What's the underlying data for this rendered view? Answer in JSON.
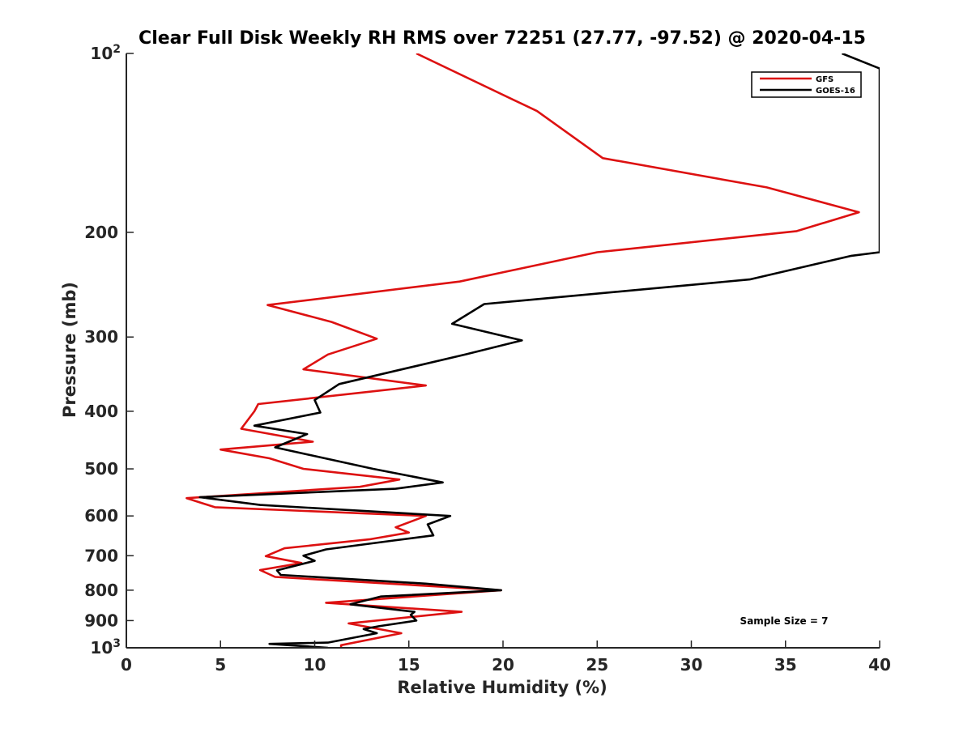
{
  "chart_data": {
    "type": "line",
    "title": "Clear Full Disk Weekly RH RMS over 72251 (27.77, -97.52) @ 2020-04-15",
    "xlabel": "Relative Humidity (%)",
    "ylabel": "Pressure (mb)",
    "xlim": [
      0,
      40
    ],
    "ylim": [
      100,
      1000
    ],
    "y_scale": "log",
    "y_reversed": true,
    "grid": false,
    "legend_position": "top-right",
    "x_ticks": [
      {
        "value": 0,
        "label": "0"
      },
      {
        "value": 5,
        "label": "5"
      },
      {
        "value": 10,
        "label": "10"
      },
      {
        "value": 15,
        "label": "15"
      },
      {
        "value": 20,
        "label": "20"
      },
      {
        "value": 25,
        "label": "25"
      },
      {
        "value": 30,
        "label": "30"
      },
      {
        "value": 35,
        "label": "35"
      },
      {
        "value": 40,
        "label": "40"
      }
    ],
    "y_ticks": [
      {
        "value": 100,
        "label": "10",
        "sup": "2"
      },
      {
        "value": 200,
        "label": "200"
      },
      {
        "value": 300,
        "label": "300"
      },
      {
        "value": 400,
        "label": "400"
      },
      {
        "value": 500,
        "label": "500"
      },
      {
        "value": 600,
        "label": "600"
      },
      {
        "value": 700,
        "label": "700"
      },
      {
        "value": 800,
        "label": "800"
      },
      {
        "value": 900,
        "label": "900"
      },
      {
        "value": 1000,
        "label": "10",
        "sup": "3"
      }
    ],
    "annotation": "Sample Size = 7",
    "series": [
      {
        "name": "GFS",
        "color": "#dd1111",
        "points": [
          [
            15.4,
            100
          ],
          [
            21.8,
            125
          ],
          [
            25.3,
            150
          ],
          [
            34.0,
            168
          ],
          [
            38.9,
            185
          ],
          [
            35.6,
            199
          ],
          [
            25.0,
            216
          ],
          [
            17.7,
            242
          ],
          [
            7.5,
            265
          ],
          [
            10.9,
            283
          ],
          [
            13.3,
            302
          ],
          [
            10.7,
            321
          ],
          [
            9.4,
            340
          ],
          [
            15.9,
            362
          ],
          [
            7.0,
            389
          ],
          [
            6.8,
            400
          ],
          [
            6.1,
            428
          ],
          [
            9.9,
            450
          ],
          [
            5.0,
            464
          ],
          [
            7.6,
            480
          ],
          [
            9.4,
            500
          ],
          [
            14.5,
            521
          ],
          [
            12.4,
            536
          ],
          [
            3.2,
            560
          ],
          [
            4.7,
            580
          ],
          [
            15.9,
            600
          ],
          [
            14.3,
            627
          ],
          [
            15.0,
            640
          ],
          [
            12.9,
            657
          ],
          [
            8.4,
            680
          ],
          [
            7.4,
            701
          ],
          [
            9.3,
            720
          ],
          [
            7.1,
            740
          ],
          [
            7.9,
            760
          ],
          [
            19.9,
            800
          ],
          [
            10.6,
            840
          ],
          [
            17.8,
            870
          ],
          [
            11.8,
            910
          ],
          [
            14.6,
            945
          ],
          [
            11.4,
            990
          ],
          [
            11.4,
            1000
          ]
        ]
      },
      {
        "name": "GOES-16",
        "color": "#000000",
        "points": [
          [
            38.0,
            100
          ],
          [
            40.0,
            106
          ],
          [
            40.0,
            216
          ],
          [
            38.5,
            219
          ],
          [
            33.1,
            240
          ],
          [
            19.0,
            264
          ],
          [
            17.3,
            285
          ],
          [
            21.0,
            304
          ],
          [
            18.0,
            321
          ],
          [
            11.3,
            360
          ],
          [
            10.0,
            383
          ],
          [
            10.3,
            402
          ],
          [
            6.8,
            423
          ],
          [
            9.6,
            437
          ],
          [
            7.9,
            460
          ],
          [
            13.1,
            500
          ],
          [
            16.8,
            527
          ],
          [
            14.3,
            540
          ],
          [
            3.9,
            558
          ],
          [
            7.1,
            575
          ],
          [
            17.2,
            600
          ],
          [
            16.0,
            620
          ],
          [
            16.3,
            647
          ],
          [
            14.2,
            660
          ],
          [
            10.6,
            683
          ],
          [
            9.4,
            700
          ],
          [
            10.0,
            714
          ],
          [
            8.0,
            741
          ],
          [
            8.2,
            754
          ],
          [
            15.9,
            780
          ],
          [
            19.9,
            800
          ],
          [
            13.5,
            820
          ],
          [
            11.9,
            845
          ],
          [
            15.3,
            870
          ],
          [
            15.1,
            880
          ],
          [
            15.4,
            900
          ],
          [
            13.4,
            920
          ],
          [
            12.6,
            930
          ],
          [
            13.3,
            945
          ],
          [
            10.7,
            980
          ],
          [
            7.6,
            985
          ],
          [
            10.7,
            1000
          ]
        ]
      }
    ]
  }
}
